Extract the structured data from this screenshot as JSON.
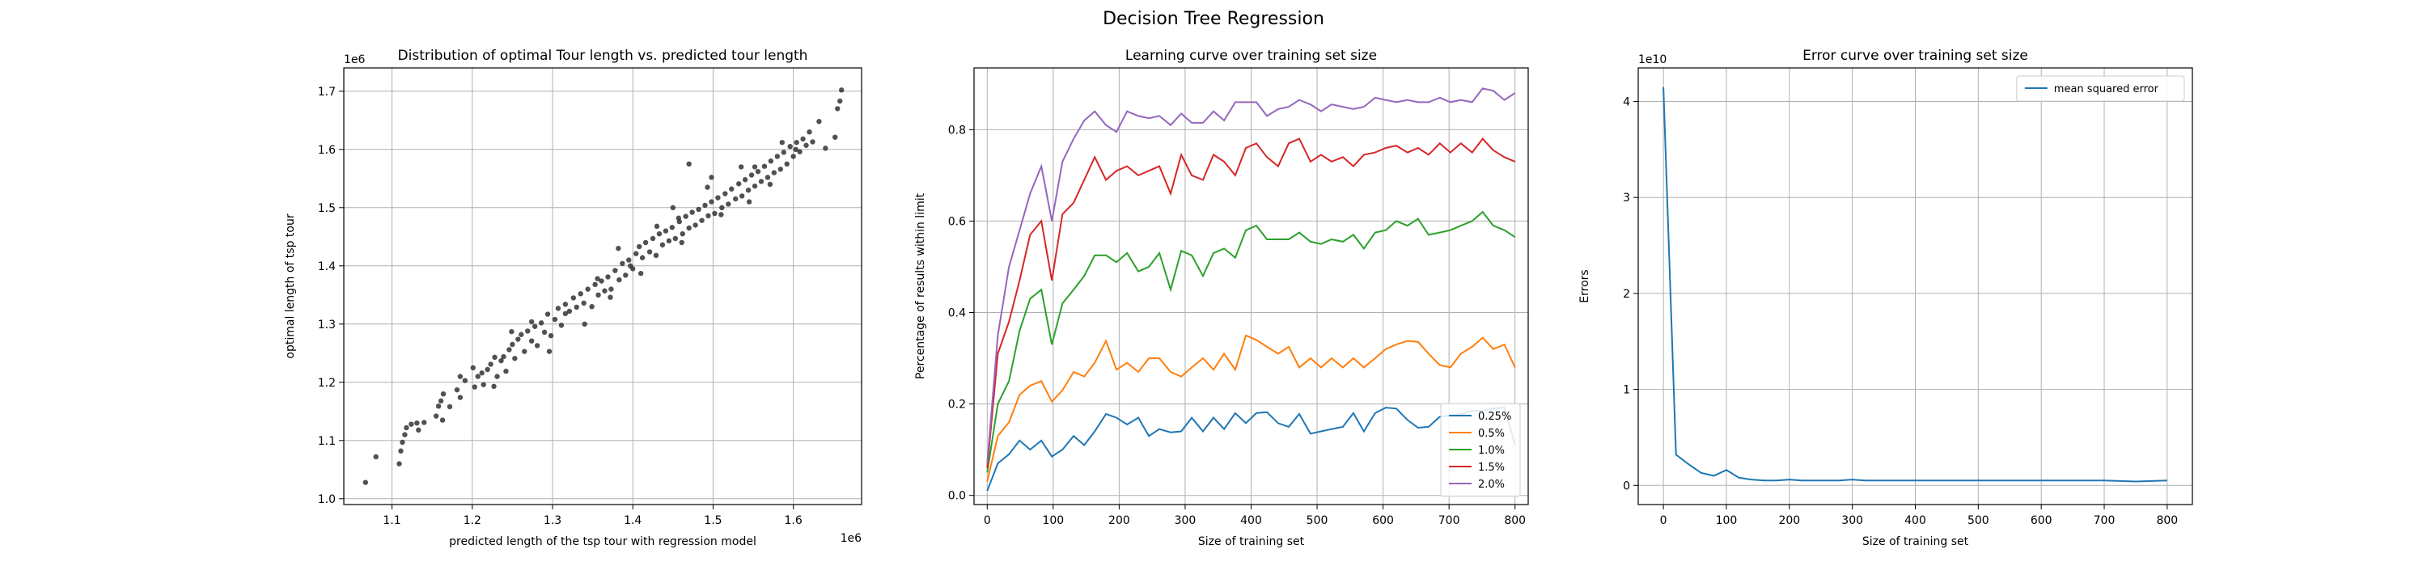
{
  "figure": {
    "suptitle": "Decision Tree Regression"
  },
  "chart_data": [
    {
      "type": "scatter",
      "title": "Distribution of optimal Tour length vs. predicted tour length",
      "xlabel": "predicted length of the tsp tour with regression model",
      "ylabel": "optimal length of tsp tour",
      "x_offset_text": "1e6",
      "y_offset_text": "1e6",
      "xlim": [
        1.04,
        1.685
      ],
      "ylim": [
        0.99,
        1.74
      ],
      "xticks": [
        1.1,
        1.2,
        1.3,
        1.4,
        1.5,
        1.6
      ],
      "yticks": [
        1.0,
        1.1,
        1.2,
        1.3,
        1.4,
        1.5,
        1.6,
        1.7
      ],
      "grid": true,
      "marker_color": "#333333",
      "points": [
        [
          1.067,
          1.028
        ],
        [
          1.08,
          1.072
        ],
        [
          1.109,
          1.06
        ],
        [
          1.111,
          1.082
        ],
        [
          1.113,
          1.097
        ],
        [
          1.116,
          1.11
        ],
        [
          1.118,
          1.122
        ],
        [
          1.124,
          1.128
        ],
        [
          1.131,
          1.13
        ],
        [
          1.14,
          1.131
        ],
        [
          1.155,
          1.142
        ],
        [
          1.158,
          1.159
        ],
        [
          1.161,
          1.168
        ],
        [
          1.164,
          1.18
        ],
        [
          1.172,
          1.158
        ],
        [
          1.181,
          1.187
        ],
        [
          1.185,
          1.21
        ],
        [
          1.191,
          1.203
        ],
        [
          1.203,
          1.192
        ],
        [
          1.207,
          1.21
        ],
        [
          1.212,
          1.216
        ],
        [
          1.214,
          1.196
        ],
        [
          1.219,
          1.222
        ],
        [
          1.223,
          1.231
        ],
        [
          1.227,
          1.193
        ],
        [
          1.231,
          1.21
        ],
        [
          1.236,
          1.237
        ],
        [
          1.239,
          1.244
        ],
        [
          1.242,
          1.219
        ],
        [
          1.246,
          1.256
        ],
        [
          1.25,
          1.265
        ],
        [
          1.253,
          1.241
        ],
        [
          1.257,
          1.274
        ],
        [
          1.261,
          1.282
        ],
        [
          1.265,
          1.253
        ],
        [
          1.269,
          1.288
        ],
        [
          1.274,
          1.271
        ],
        [
          1.278,
          1.296
        ],
        [
          1.281,
          1.263
        ],
        [
          1.286,
          1.302
        ],
        [
          1.29,
          1.286
        ],
        [
          1.294,
          1.317
        ],
        [
          1.298,
          1.28
        ],
        [
          1.303,
          1.308
        ],
        [
          1.307,
          1.327
        ],
        [
          1.311,
          1.298
        ],
        [
          1.316,
          1.334
        ],
        [
          1.321,
          1.322
        ],
        [
          1.326,
          1.345
        ],
        [
          1.33,
          1.329
        ],
        [
          1.335,
          1.352
        ],
        [
          1.339,
          1.336
        ],
        [
          1.344,
          1.36
        ],
        [
          1.349,
          1.33
        ],
        [
          1.353,
          1.368
        ],
        [
          1.357,
          1.35
        ],
        [
          1.361,
          1.374
        ],
        [
          1.365,
          1.357
        ],
        [
          1.369,
          1.381
        ],
        [
          1.373,
          1.36
        ],
        [
          1.378,
          1.392
        ],
        [
          1.383,
          1.376
        ],
        [
          1.387,
          1.404
        ],
        [
          1.391,
          1.384
        ],
        [
          1.395,
          1.41
        ],
        [
          1.4,
          1.395
        ],
        [
          1.404,
          1.421
        ],
        [
          1.408,
          1.433
        ],
        [
          1.412,
          1.414
        ],
        [
          1.416,
          1.44
        ],
        [
          1.421,
          1.424
        ],
        [
          1.425,
          1.447
        ],
        [
          1.429,
          1.418
        ],
        [
          1.433,
          1.455
        ],
        [
          1.437,
          1.436
        ],
        [
          1.441,
          1.46
        ],
        [
          1.445,
          1.443
        ],
        [
          1.449,
          1.466
        ],
        [
          1.453,
          1.447
        ],
        [
          1.458,
          1.476
        ],
        [
          1.462,
          1.455
        ],
        [
          1.466,
          1.485
        ],
        [
          1.47,
          1.465
        ],
        [
          1.474,
          1.492
        ],
        [
          1.478,
          1.47
        ],
        [
          1.482,
          1.497
        ],
        [
          1.486,
          1.478
        ],
        [
          1.49,
          1.504
        ],
        [
          1.494,
          1.486
        ],
        [
          1.498,
          1.51
        ],
        [
          1.502,
          1.49
        ],
        [
          1.506,
          1.517
        ],
        [
          1.511,
          1.5
        ],
        [
          1.515,
          1.524
        ],
        [
          1.519,
          1.506
        ],
        [
          1.523,
          1.532
        ],
        [
          1.528,
          1.515
        ],
        [
          1.532,
          1.541
        ],
        [
          1.536,
          1.52
        ],
        [
          1.54,
          1.548
        ],
        [
          1.544,
          1.53
        ],
        [
          1.548,
          1.556
        ],
        [
          1.552,
          1.537
        ],
        [
          1.556,
          1.562
        ],
        [
          1.56,
          1.545
        ],
        [
          1.564,
          1.571
        ],
        [
          1.568,
          1.552
        ],
        [
          1.572,
          1.58
        ],
        [
          1.576,
          1.56
        ],
        [
          1.58,
          1.588
        ],
        [
          1.584,
          1.566
        ],
        [
          1.588,
          1.595
        ],
        [
          1.592,
          1.575
        ],
        [
          1.596,
          1.605
        ],
        [
          1.6,
          1.588
        ],
        [
          1.604,
          1.612
        ],
        [
          1.608,
          1.596
        ],
        [
          1.612,
          1.618
        ],
        [
          1.616,
          1.607
        ],
        [
          1.62,
          1.63
        ],
        [
          1.624,
          1.613
        ],
        [
          1.632,
          1.648
        ],
        [
          1.64,
          1.602
        ],
        [
          1.655,
          1.67
        ],
        [
          1.658,
          1.683
        ],
        [
          1.66,
          1.702
        ],
        [
          1.652,
          1.621
        ],
        [
          1.498,
          1.552
        ],
        [
          1.47,
          1.575
        ],
        [
          1.457,
          1.482
        ],
        [
          1.43,
          1.468
        ],
        [
          1.382,
          1.43
        ],
        [
          1.34,
          1.3
        ],
        [
          1.296,
          1.253
        ],
        [
          1.249,
          1.287
        ],
        [
          1.201,
          1.225
        ],
        [
          1.163,
          1.135
        ],
        [
          1.552,
          1.57
        ],
        [
          1.586,
          1.612
        ],
        [
          1.603,
          1.6
        ],
        [
          1.545,
          1.51
        ],
        [
          1.51,
          1.488
        ],
        [
          1.461,
          1.44
        ],
        [
          1.41,
          1.387
        ],
        [
          1.372,
          1.346
        ],
        [
          1.316,
          1.318
        ],
        [
          1.274,
          1.304
        ],
        [
          1.228,
          1.243
        ],
        [
          1.185,
          1.174
        ],
        [
          1.133,
          1.118
        ],
        [
          1.45,
          1.5
        ],
        [
          1.493,
          1.535
        ],
        [
          1.535,
          1.57
        ],
        [
          1.571,
          1.54
        ],
        [
          1.397,
          1.4
        ],
        [
          1.356,
          1.378
        ]
      ]
    },
    {
      "type": "line",
      "title": "Learning curve over training set size",
      "xlabel": "Size of training set",
      "ylabel": "Percentage of results within limit",
      "xlim": [
        -20,
        820
      ],
      "ylim": [
        -0.02,
        0.935
      ],
      "xticks": [
        0,
        100,
        200,
        300,
        400,
        500,
        600,
        700,
        800
      ],
      "yticks": [
        0.0,
        0.2,
        0.4,
        0.6,
        0.8
      ],
      "grid": true,
      "legend_position": "lower-right",
      "x": [
        0,
        16,
        33,
        49,
        65,
        82,
        98,
        114,
        131,
        147,
        163,
        180,
        196,
        212,
        229,
        245,
        261,
        278,
        294,
        310,
        327,
        343,
        359,
        376,
        392,
        408,
        424,
        441,
        457,
        473,
        490,
        506,
        522,
        539,
        555,
        571,
        588,
        604,
        620,
        637,
        653,
        669,
        686,
        702,
        718,
        735,
        751,
        767,
        784,
        800
      ],
      "series": [
        {
          "name": "0.25%",
          "color": "#1f77b4",
          "values": [
            0.01,
            0.07,
            0.09,
            0.12,
            0.1,
            0.12,
            0.085,
            0.1,
            0.13,
            0.11,
            0.14,
            0.178,
            0.17,
            0.155,
            0.17,
            0.13,
            0.145,
            0.138,
            0.14,
            0.17,
            0.14,
            0.17,
            0.145,
            0.18,
            0.158,
            0.18,
            0.182,
            0.158,
            0.15,
            0.178,
            0.135,
            0.14,
            0.145,
            0.15,
            0.18,
            0.14,
            0.18,
            0.192,
            0.19,
            0.165,
            0.148,
            0.15,
            0.172,
            0.175,
            0.178,
            0.185,
            0.185,
            0.19,
            0.192,
            0.11
          ]
        },
        {
          "name": "0.5%",
          "color": "#ff7f0e",
          "values": [
            0.03,
            0.13,
            0.16,
            0.22,
            0.24,
            0.25,
            0.205,
            0.23,
            0.27,
            0.26,
            0.29,
            0.338,
            0.275,
            0.29,
            0.27,
            0.3,
            0.3,
            0.27,
            0.26,
            0.28,
            0.3,
            0.275,
            0.31,
            0.275,
            0.35,
            0.34,
            0.325,
            0.31,
            0.325,
            0.28,
            0.3,
            0.28,
            0.3,
            0.28,
            0.3,
            0.28,
            0.3,
            0.32,
            0.33,
            0.338,
            0.336,
            0.31,
            0.285,
            0.28,
            0.31,
            0.325,
            0.345,
            0.32,
            0.33,
            0.28
          ]
        },
        {
          "name": "1.0%",
          "color": "#2ca02c",
          "values": [
            0.05,
            0.2,
            0.25,
            0.36,
            0.43,
            0.45,
            0.33,
            0.42,
            0.45,
            0.48,
            0.525,
            0.525,
            0.51,
            0.53,
            0.49,
            0.5,
            0.53,
            0.45,
            0.535,
            0.525,
            0.48,
            0.53,
            0.54,
            0.52,
            0.58,
            0.59,
            0.56,
            0.56,
            0.56,
            0.575,
            0.555,
            0.55,
            0.56,
            0.555,
            0.57,
            0.54,
            0.575,
            0.58,
            0.6,
            0.59,
            0.605,
            0.57,
            0.575,
            0.58,
            0.59,
            0.6,
            0.62,
            0.59,
            0.58,
            0.565
          ]
        },
        {
          "name": "1.5%",
          "color": "#d62728",
          "values": [
            0.06,
            0.31,
            0.38,
            0.47,
            0.57,
            0.6,
            0.47,
            0.615,
            0.64,
            0.69,
            0.74,
            0.69,
            0.71,
            0.72,
            0.7,
            0.71,
            0.72,
            0.66,
            0.745,
            0.7,
            0.69,
            0.745,
            0.73,
            0.7,
            0.76,
            0.77,
            0.74,
            0.72,
            0.77,
            0.78,
            0.73,
            0.745,
            0.73,
            0.74,
            0.72,
            0.745,
            0.75,
            0.76,
            0.765,
            0.75,
            0.76,
            0.745,
            0.77,
            0.75,
            0.77,
            0.75,
            0.78,
            0.755,
            0.74,
            0.73
          ]
        },
        {
          "name": "2.0%",
          "color": "#9467bd",
          "values": [
            0.07,
            0.35,
            0.5,
            0.58,
            0.66,
            0.72,
            0.6,
            0.73,
            0.78,
            0.82,
            0.84,
            0.81,
            0.795,
            0.84,
            0.83,
            0.825,
            0.83,
            0.81,
            0.835,
            0.815,
            0.815,
            0.84,
            0.82,
            0.86,
            0.86,
            0.86,
            0.83,
            0.845,
            0.85,
            0.865,
            0.855,
            0.84,
            0.855,
            0.85,
            0.845,
            0.85,
            0.87,
            0.865,
            0.86,
            0.865,
            0.86,
            0.86,
            0.87,
            0.86,
            0.865,
            0.86,
            0.89,
            0.885,
            0.865,
            0.88
          ]
        }
      ]
    },
    {
      "type": "line",
      "title": "Error curve over training set size",
      "xlabel": "Size of training set",
      "ylabel": "Errors",
      "y_offset_text": "1e10",
      "xlim": [
        -40,
        840
      ],
      "ylim": [
        -0.2,
        4.35
      ],
      "xticks": [
        0,
        100,
        200,
        300,
        400,
        500,
        600,
        700,
        800
      ],
      "yticks": [
        0,
        1,
        2,
        3,
        4
      ],
      "grid": true,
      "legend_position": "top-right",
      "x": [
        0,
        20,
        40,
        60,
        80,
        100,
        120,
        140,
        160,
        180,
        200,
        220,
        240,
        260,
        280,
        300,
        320,
        340,
        360,
        380,
        400,
        450,
        500,
        550,
        600,
        650,
        700,
        750,
        800
      ],
      "series": [
        {
          "name": "mean squared error",
          "color": "#1f77b4",
          "values": [
            4.15,
            0.32,
            0.22,
            0.13,
            0.1,
            0.16,
            0.08,
            0.06,
            0.05,
            0.05,
            0.06,
            0.05,
            0.05,
            0.05,
            0.05,
            0.06,
            0.05,
            0.05,
            0.05,
            0.05,
            0.05,
            0.05,
            0.05,
            0.05,
            0.05,
            0.05,
            0.05,
            0.04,
            0.05
          ]
        }
      ]
    }
  ]
}
